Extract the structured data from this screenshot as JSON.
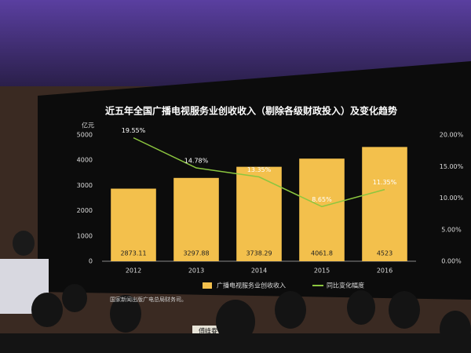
{
  "chart_data": {
    "type": "bar",
    "title": "近五年全国广播电视服务业创收收入（剔除各级财政投入）及变化趋势",
    "y_unit": "亿元",
    "categories": [
      "2012",
      "2013",
      "2014",
      "2015",
      "2016"
    ],
    "series": [
      {
        "name": "广播电视服务业创收收入",
        "type": "bar",
        "color": "#f3c04c",
        "values": [
          2873.11,
          3297.88,
          3738.29,
          4061.8,
          4523
        ]
      },
      {
        "name": "同比变化幅度",
        "type": "line",
        "axis": "y2",
        "color": "#8cc63f",
        "values": [
          19.55,
          14.78,
          13.35,
          8.65,
          11.35
        ],
        "value_labels": [
          "19.55%",
          "14.78%",
          "13.35%",
          "8.65%",
          "11.35%"
        ]
      }
    ],
    "ylim": [
      0,
      5000
    ],
    "yticks": [
      0,
      1000,
      2000,
      3000,
      4000,
      5000
    ],
    "y2lim": [
      0,
      20
    ],
    "y2ticks": [
      {
        "value": 0,
        "label": "0.00%"
      },
      {
        "value": 5,
        "label": "5.00%"
      },
      {
        "value": 10,
        "label": "10.00%"
      },
      {
        "value": 15,
        "label": "15.00%"
      },
      {
        "value": 20,
        "label": "20.00%"
      }
    ],
    "source": "国家新闻出版广电总局财务司。"
  },
  "nameplate": "傅峰春"
}
